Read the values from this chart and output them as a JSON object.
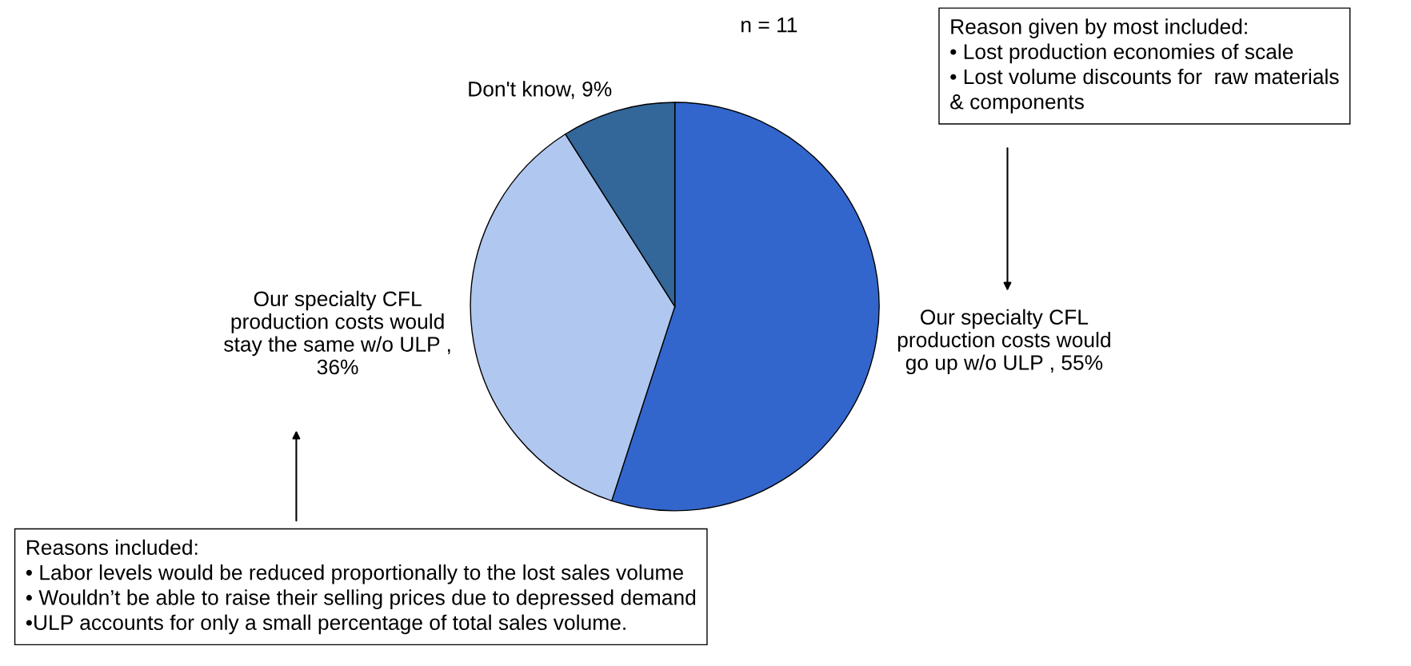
{
  "chart_data": {
    "type": "pie",
    "categories": [
      "Our specialty CFL\nproduction costs would\ngo up w/o ULP , 55%",
      "Our specialty CFL\nproduction costs would\nstay the same w/o ULP ,\n36%",
      "Don't know, 9%"
    ],
    "values": [
      55,
      36,
      9
    ],
    "colors": [
      "#3366cc",
      "#b0c8f0",
      "#336699"
    ],
    "annotations": [
      "n = 11",
      "Reason given by most included:\n• Lost production economies of scale\n• Lost volume discounts for  raw materials\n& components",
      "Reasons included:\n• Labor levels would be reduced proportionally to the lost sales volume\n• Wouldn’t be able to raise their selling prices due to depressed demand\n•ULP accounts for only a small percentage of total sales volume."
    ]
  }
}
